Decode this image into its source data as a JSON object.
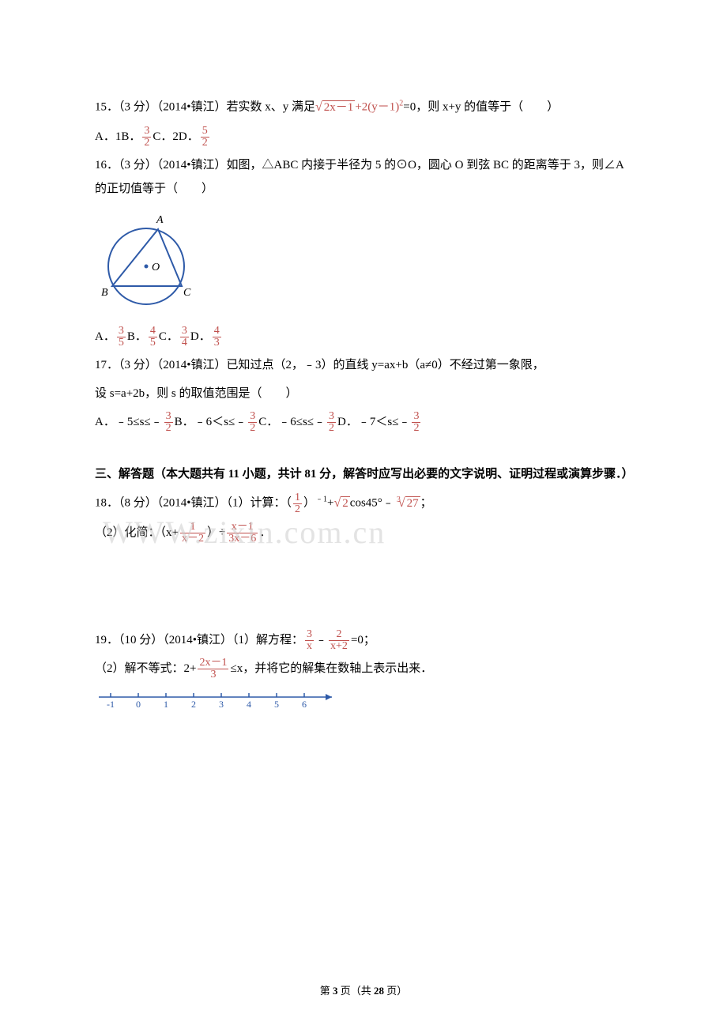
{
  "watermark": "WWW.zixin.com.cn",
  "q15": {
    "stem": "15．（3 分）（2014•镇江）若实数 x、y 满足",
    "eq_part": "+2(y－1)",
    "eq_after": "=0，则 x+y 的值等于（　　）",
    "sqrt_inner": "2x－1",
    "exp2": "2",
    "a": "A．1",
    "b_label": "B．",
    "b_num": "3",
    "b_den": "2",
    "c_label": "C．2",
    "d_label": "D．",
    "d_num": "5",
    "d_den": "2"
  },
  "q16": {
    "stem": "16．（3 分）（2014•镇江）如图，△ABC 内接于半径为 5 的⊙O，圆心 O 到弦 BC 的距离等于 3，则∠A 的正切值等于（　　）",
    "a_pre": "A．",
    "a_num": "3",
    "a_den": "5",
    "b_pre": "B．",
    "b_num": "4",
    "b_den": "5",
    "c_pre": "C．",
    "c_num": "3",
    "c_den": "4",
    "d_pre": "D．",
    "d_num": "4",
    "d_den": "3",
    "fig": {
      "labelA": "A",
      "labelB": "B",
      "labelC": "C",
      "labelO": "O"
    }
  },
  "q17": {
    "line1": "17．（3 分）（2014•镇江）已知过点（2，﹣3）的直线 y=ax+b（a≠0）不经过第一象限，",
    "line2": "设 s=a+2b，则 s 的取值范围是（　　）",
    "a_pre": "A．﹣5≤s≤﹣",
    "a_num": "3",
    "a_den": "2",
    "b_pre": "B．﹣6＜s≤﹣",
    "b_num": "3",
    "b_den": "2",
    "c_pre": "C．﹣6≤s≤﹣",
    "c_num": "3",
    "c_den": "2",
    "d_pre": "D．﹣7＜s≤﹣",
    "d_num": "3",
    "d_den": "2"
  },
  "section3": "三、解答题（本大题共有 11 小题，共计 81 分，解答时应写出必要的文字说明、证明过程或演算步骤．）",
  "q18": {
    "stem": "18．（8 分）（2014•镇江）（1）计算：",
    "lp": "（",
    "rp": "）",
    "half_num": "1",
    "half_den": "2",
    "exp": "﹣1",
    "plus": "+",
    "sqrt2": "2",
    "cos": "cos45°",
    "minus": "﹣",
    "cube_idx": "3",
    "cube_rad": "27",
    "semi": "；",
    "p2_pre": "（2）化简：（x+",
    "f1_num": "1",
    "f1_den": "x－2",
    "mid": "）÷",
    "f2_num": "x－1",
    "f2_den": "3x－6",
    "end": "．"
  },
  "q19": {
    "stem": "19．（10 分）（2014•镇江）（1）解方程：",
    "f1_num": "3",
    "f1_den": "x",
    "minus": "﹣",
    "f2_num": "2",
    "f2_den": "x+2",
    "eq": "=0；",
    "p2_pre": "（2）解不等式：2+",
    "f3_num": "2x－1",
    "f3_den": "3",
    "p2_mid": "≤x，并将它的解集在数轴上表示出来．",
    "ticks": [
      "-1",
      "0",
      "1",
      "2",
      "3",
      "4",
      "5",
      "6"
    ]
  },
  "footer": {
    "pre": "第 ",
    "cur": "3",
    "mid": " 页（共 ",
    "total": "28",
    "post": " 页）"
  }
}
